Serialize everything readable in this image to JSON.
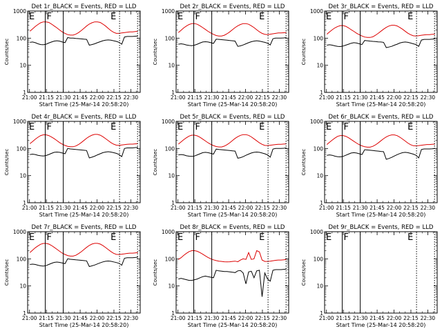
{
  "chart_data": [
    {
      "type": "line",
      "title": "Det 1r_BLACK = Events, RED = LLD",
      "xlabel": "Start Time (25-Mar-14 20:58:20)",
      "ylabel": "Counts/sec",
      "series": [
        {
          "name": "Events",
          "color": "#000000",
          "values": [
            70,
            72,
            68,
            62,
            58,
            57,
            60,
            66,
            72,
            78,
            80,
            78,
            72,
            68,
            105,
            100,
            100,
            98,
            96,
            94,
            92,
            90,
            55,
            58,
            62,
            68,
            74,
            80,
            84,
            86,
            84,
            80,
            76,
            70,
            60,
            110,
            115,
            115,
            115,
            118,
            120
          ]
        },
        {
          "name": "LLD",
          "color": "#dd0000",
          "values": [
            180,
            220,
            270,
            320,
            370,
            400,
            400,
            380,
            330,
            280,
            240,
            200,
            170,
            150,
            135,
            130,
            130,
            140,
            160,
            190,
            230,
            280,
            330,
            370,
            400,
            400,
            380,
            330,
            280,
            230,
            190,
            165,
            150,
            150,
            155,
            160,
            165,
            170,
            170,
            175,
            180
          ]
        }
      ]
    },
    {
      "type": "line",
      "title": "Det 2r_BLACK = Events, RED = LLD",
      "xlabel": "Start Time (25-Mar-14 20:58:20)",
      "ylabel": "Counts/sec",
      "series": [
        {
          "name": "Events",
          "color": "#000000",
          "values": [
            60,
            62,
            60,
            56,
            54,
            53,
            55,
            60,
            66,
            72,
            74,
            72,
            68,
            64,
            92,
            90,
            88,
            86,
            84,
            82,
            80,
            78,
            50,
            52,
            56,
            62,
            68,
            74,
            78,
            80,
            78,
            74,
            70,
            65,
            56,
            95,
            100,
            100,
            100,
            102,
            105
          ]
        },
        {
          "name": "LLD",
          "color": "#dd0000",
          "values": [
            160,
            195,
            240,
            280,
            320,
            345,
            345,
            325,
            285,
            245,
            210,
            178,
            155,
            138,
            125,
            120,
            120,
            128,
            145,
            170,
            205,
            245,
            285,
            320,
            345,
            345,
            325,
            285,
            245,
            205,
            172,
            150,
            138,
            135,
            140,
            145,
            150,
            155,
            155,
            158,
            160
          ]
        }
      ]
    },
    {
      "type": "line",
      "title": "Det 3r_BLACK = Events, RED = LLD",
      "xlabel": "Start Time (25-Mar-14 20:58:20)",
      "ylabel": "Counts/sec",
      "series": [
        {
          "name": "Events",
          "color": "#000000",
          "values": [
            55,
            57,
            55,
            52,
            50,
            49,
            51,
            55,
            60,
            65,
            68,
            66,
            62,
            58,
            82,
            80,
            78,
            76,
            75,
            73,
            72,
            70,
            45,
            47,
            50,
            55,
            60,
            66,
            70,
            72,
            70,
            66,
            62,
            58,
            50,
            85,
            90,
            90,
            90,
            92,
            95
          ]
        },
        {
          "name": "LLD",
          "color": "#dd0000",
          "values": [
            140,
            170,
            205,
            240,
            270,
            290,
            290,
            275,
            240,
            205,
            178,
            152,
            134,
            120,
            110,
            106,
            106,
            112,
            128,
            150,
            180,
            215,
            250,
            280,
            300,
            300,
            282,
            248,
            214,
            180,
            152,
            134,
            122,
            120,
            124,
            128,
            132,
            135,
            135,
            138,
            140
          ]
        }
      ]
    },
    {
      "type": "line",
      "title": "Det 4r_BLACK = Events, RED = LLD",
      "xlabel": "Start Time (25-Mar-14 20:58:20)",
      "ylabel": "Counts/sec",
      "series": [
        {
          "name": "Events",
          "color": "#000000",
          "values": [
            60,
            62,
            60,
            56,
            54,
            53,
            55,
            60,
            66,
            72,
            74,
            72,
            68,
            64,
            100,
            96,
            94,
            92,
            90,
            88,
            86,
            84,
            45,
            48,
            52,
            58,
            64,
            70,
            74,
            76,
            74,
            70,
            66,
            60,
            50,
            100,
            105,
            105,
            105,
            108,
            110
          ]
        },
        {
          "name": "LLD",
          "color": "#dd0000",
          "values": [
            150,
            180,
            220,
            260,
            300,
            320,
            320,
            300,
            265,
            230,
            195,
            165,
            145,
            130,
            120,
            116,
            116,
            124,
            140,
            165,
            198,
            238,
            278,
            310,
            330,
            330,
            310,
            272,
            232,
            195,
            165,
            145,
            133,
            130,
            134,
            138,
            142,
            145,
            145,
            148,
            150
          ]
        }
      ]
    },
    {
      "type": "line",
      "title": "Det 5r_BLACK = Events, RED = LLD",
      "xlabel": "Start Time (25-Mar-14 20:58:20)",
      "ylabel": "Counts/sec",
      "series": [
        {
          "name": "Events",
          "color": "#000000",
          "values": [
            58,
            60,
            58,
            54,
            52,
            51,
            53,
            58,
            64,
            70,
            72,
            70,
            66,
            62,
            95,
            92,
            90,
            88,
            86,
            84,
            82,
            80,
            44,
            46,
            50,
            56,
            62,
            68,
            72,
            74,
            72,
            68,
            64,
            58,
            48,
            95,
            100,
            100,
            100,
            102,
            105
          ]
        },
        {
          "name": "LLD",
          "color": "#dd0000",
          "values": [
            145,
            175,
            212,
            250,
            288,
            310,
            310,
            292,
            258,
            222,
            190,
            162,
            142,
            128,
            118,
            114,
            114,
            122,
            138,
            162,
            195,
            235,
            272,
            305,
            325,
            325,
            305,
            268,
            228,
            192,
            162,
            142,
            130,
            128,
            132,
            136,
            140,
            143,
            143,
            146,
            148
          ]
        }
      ]
    },
    {
      "type": "line",
      "title": "Det 6r_BLACK = Events, RED = LLD",
      "xlabel": "Start Time (25-Mar-14 20:58:20)",
      "ylabel": "Counts/sec",
      "series": [
        {
          "name": "Events",
          "color": "#000000",
          "values": [
            56,
            58,
            56,
            52,
            50,
            49,
            51,
            56,
            62,
            68,
            70,
            68,
            64,
            60,
            90,
            88,
            86,
            84,
            82,
            80,
            78,
            76,
            40,
            43,
            47,
            53,
            59,
            65,
            70,
            72,
            70,
            66,
            62,
            56,
            45,
            92,
            96,
            96,
            96,
            98,
            100
          ]
        },
        {
          "name": "LLD",
          "color": "#dd0000",
          "values": [
            140,
            170,
            205,
            242,
            280,
            300,
            300,
            282,
            250,
            215,
            184,
            158,
            138,
            125,
            116,
            112,
            112,
            120,
            136,
            160,
            192,
            230,
            266,
            298,
            318,
            318,
            298,
            262,
            224,
            188,
            158,
            138,
            127,
            125,
            128,
            132,
            136,
            140,
            140,
            143,
            145
          ]
        }
      ]
    },
    {
      "type": "line",
      "title": "Det 7r_BLACK = Events, RED = LLD",
      "xlabel": "Start Time (25-Mar-14 20:58:20)",
      "ylabel": "Counts/sec",
      "series": [
        {
          "name": "Events",
          "color": "#000000",
          "values": [
            62,
            64,
            62,
            58,
            55,
            54,
            56,
            62,
            68,
            74,
            76,
            74,
            70,
            66,
            100,
            96,
            94,
            92,
            90,
            88,
            86,
            84,
            52,
            55,
            59,
            65,
            71,
            77,
            81,
            83,
            81,
            77,
            73,
            68,
            58,
            105,
            110,
            110,
            110,
            112,
            115
          ]
        },
        {
          "name": "LLD",
          "color": "#dd0000",
          "values": [
            170,
            210,
            255,
            300,
            345,
            370,
            370,
            350,
            310,
            265,
            225,
            190,
            162,
            145,
            132,
            126,
            126,
            135,
            155,
            182,
            220,
            265,
            312,
            350,
            372,
            372,
            350,
            308,
            262,
            220,
            185,
            160,
            146,
            144,
            148,
            153,
            158,
            162,
            162,
            166,
            170
          ]
        }
      ]
    },
    {
      "type": "line",
      "title": "Det 8r_BLACK = Events, RED = LLD",
      "xlabel": "Start Time (25-Mar-14 20:58:20)",
      "ylabel": "Counts/sec",
      "series": [
        {
          "name": "Events",
          "color": "#000000",
          "values": [
            18,
            19,
            18,
            17,
            16,
            16,
            17,
            18,
            20,
            22,
            23,
            22,
            21,
            20,
            38,
            36,
            35,
            34,
            34,
            33,
            32,
            31,
            36,
            37,
            30,
            12,
            33,
            35,
            20,
            36,
            38,
            4,
            30,
            18,
            15,
            38,
            40,
            40,
            40,
            41,
            42
          ]
        },
        {
          "name": "LLD",
          "color": "#dd0000",
          "values": [
            95,
            110,
            135,
            160,
            185,
            200,
            200,
            190,
            170,
            148,
            128,
            112,
            100,
            92,
            86,
            82,
            80,
            78,
            77,
            78,
            80,
            82,
            78,
            90,
            100,
            95,
            170,
            95,
            100,
            200,
            180,
            90,
            80,
            80,
            82,
            85,
            88,
            90,
            90,
            92,
            95
          ]
        }
      ]
    },
    {
      "type": "line",
      "title": "Det 9r_BLACK = Events, RED = LLD",
      "xlabel": "Start Time (25-Mar-14 20:58:20)",
      "ylabel": "Counts/sec",
      "series": []
    }
  ],
  "axes": {
    "xlim": [
      "20:58:20",
      "22:38:20"
    ],
    "xticks": [
      "21:00",
      "21:15",
      "21:30",
      "21:45",
      "22:00",
      "22:15",
      "22:30"
    ],
    "yscale": "log",
    "ylim": [
      1,
      1000
    ],
    "yticks": [
      "1",
      "10",
      "100",
      "1000"
    ]
  },
  "markers": {
    "labels": [
      "E",
      "F",
      "E"
    ],
    "solid_lines": [
      "21:14:00",
      "21:30:00"
    ],
    "dotted_lines": [
      "22:20:00",
      "22:36:00"
    ]
  }
}
